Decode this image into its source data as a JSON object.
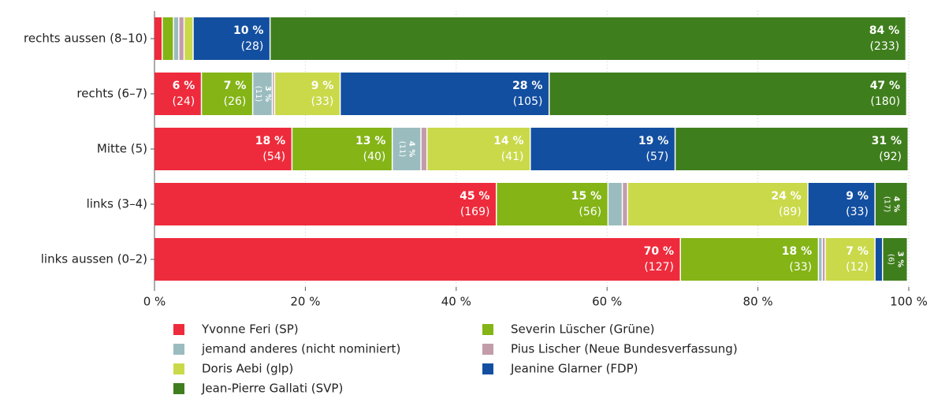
{
  "chart_data": {
    "type": "stacked-bar-horizontal",
    "categories": [
      "rechts aussen (8–10)",
      "rechts (6–7)",
      "Mitte (5)",
      "links (3–4)",
      "links aussen (0–2)"
    ],
    "xlim": [
      0,
      100
    ],
    "xticks": [
      {
        "value": 0,
        "label": "0 %"
      },
      {
        "value": 20,
        "label": "20 %"
      },
      {
        "value": 40,
        "label": "40 %"
      },
      {
        "value": 60,
        "label": "60 %"
      },
      {
        "value": 80,
        "label": "80 %"
      },
      {
        "value": 100,
        "label": "100 %"
      }
    ],
    "grid": true,
    "series": [
      {
        "name": "Yvonne Feri (SP)",
        "color": "#ee2b3c",
        "values": [
          1.1,
          6.3,
          18.3,
          45.4,
          69.8
        ],
        "value_labels": [
          null,
          "6 %",
          "18 %",
          "45 %",
          "70 %"
        ],
        "count_labels": [
          null,
          "(24)",
          "(54)",
          "(169)",
          "(127)"
        ]
      },
      {
        "name": "Severin Lüscher (Grüne)",
        "color": "#84b416",
        "values": [
          1.5,
          6.8,
          13.3,
          14.8,
          18.3
        ],
        "value_labels": [
          null,
          "7 %",
          "13 %",
          "15 %",
          "18 %"
        ],
        "count_labels": [
          null,
          "(26)",
          "(40)",
          "(56)",
          "(33)"
        ]
      },
      {
        "name": "jemand anderes (nicht nominiert)",
        "color": "#9bbcbe",
        "values": [
          0.7,
          2.6,
          3.8,
          1.9,
          0.5
        ],
        "value_labels": [
          null,
          "3 %",
          "4 %",
          null,
          null
        ],
        "count_labels": [
          null,
          "(11)",
          "(11)",
          null,
          null
        ]
      },
      {
        "name": "Pius Lischer (Neue Bundesverfassung)",
        "color": "#c39caa",
        "values": [
          0.7,
          0.3,
          0.8,
          0.7,
          0.4
        ],
        "value_labels": [
          null,
          null,
          null,
          null,
          null
        ],
        "count_labels": [
          null,
          null,
          null,
          null,
          null
        ]
      },
      {
        "name": "Doris Aebi (glp)",
        "color": "#c9d94a",
        "values": [
          1.2,
          8.7,
          13.7,
          23.9,
          6.6
        ],
        "value_labels": [
          null,
          "9 %",
          "14 %",
          "24 %",
          "7 %"
        ],
        "count_labels": [
          null,
          "(33)",
          "(41)",
          "(89)",
          "(12)"
        ]
      },
      {
        "name": "Jeanine Glarner (FDP)",
        "color": "#134fa0",
        "values": [
          10.2,
          27.7,
          19.2,
          8.9,
          1.0
        ],
        "value_labels": [
          "10 %",
          "28 %",
          "19 %",
          "9 %",
          null
        ],
        "count_labels": [
          "(28)",
          "(105)",
          "(57)",
          "(33)",
          null
        ]
      },
      {
        "name": "Jean-Pierre Gallati (SVP)",
        "color": "#3f7e1d",
        "values": [
          84.3,
          47.4,
          30.9,
          4.3,
          3.3
        ],
        "value_labels": [
          "84 %",
          "47 %",
          "31 %",
          "4 %",
          "3 %"
        ],
        "count_labels": [
          "(233)",
          "(180)",
          "(92)",
          "(17)",
          "(6)"
        ]
      }
    ]
  }
}
